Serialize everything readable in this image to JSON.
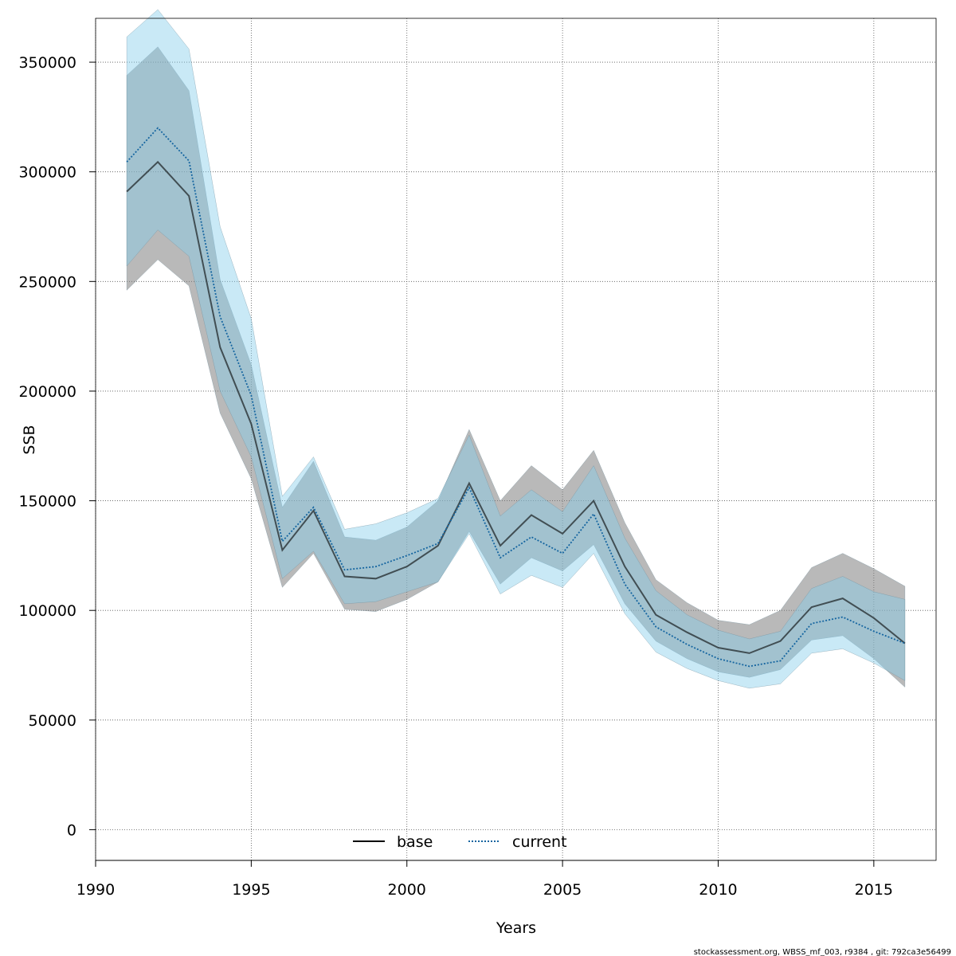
{
  "chart_data": {
    "type": "line",
    "xlabel": "Years",
    "ylabel": "SSB",
    "xlim": [
      1990,
      2017
    ],
    "ylim": [
      -14000,
      370000
    ],
    "x_ticks": [
      1990,
      1995,
      2000,
      2005,
      2010,
      2015
    ],
    "y_ticks": [
      0,
      50000,
      100000,
      150000,
      200000,
      250000,
      300000,
      350000
    ],
    "grid": true,
    "legend_position": "bottom-center",
    "x": [
      1991,
      1992,
      1993,
      1994,
      1995,
      1996,
      1997,
      1998,
      1999,
      2000,
      2001,
      2002,
      2003,
      2004,
      2005,
      2006,
      2007,
      2008,
      2009,
      2010,
      2011,
      2012,
      2013,
      2014,
      2015,
      2016
    ],
    "series": [
      {
        "name": "base",
        "line_style": "solid",
        "line_color": "#000000",
        "band_color": "#808080",
        "values": [
          291000,
          304500,
          289000,
          220000,
          185000,
          127500,
          145500,
          115500,
          114500,
          120000,
          129500,
          158000,
          129500,
          143500,
          135000,
          150000,
          120000,
          98000,
          90000,
          83000,
          80500,
          86000,
          101500,
          105500,
          96500,
          85000
        ],
        "lower": [
          246000,
          260000,
          248000,
          190000,
          160000,
          110500,
          126000,
          100500,
          99500,
          105000,
          113000,
          136000,
          112000,
          124000,
          118000,
          130000,
          103000,
          86000,
          78000,
          72000,
          69500,
          73000,
          86500,
          88500,
          78000,
          65000
        ],
        "upper": [
          344000,
          357000,
          337000,
          251000,
          212000,
          147000,
          168000,
          133500,
          132000,
          138000,
          150000,
          182500,
          150000,
          166000,
          155000,
          173000,
          140000,
          114000,
          103500,
          95500,
          93500,
          100000,
          119500,
          126000,
          119000,
          111000
        ]
      },
      {
        "name": "current",
        "line_style": "dotted",
        "line_color": "#1565a0",
        "band_color": "#87ceeb",
        "values": [
          304500,
          320000,
          305000,
          234000,
          198000,
          131500,
          147000,
          118500,
          120000,
          125000,
          130500,
          156000,
          124000,
          133500,
          126000,
          144000,
          112000,
          92500,
          84500,
          78000,
          74500,
          77000,
          94000,
          97000,
          90500,
          85000
        ],
        "lower": [
          257000,
          273500,
          261500,
          200000,
          170000,
          114500,
          127000,
          103000,
          104000,
          108500,
          113000,
          135000,
          107500,
          116000,
          110500,
          126000,
          98500,
          81000,
          73500,
          68000,
          64500,
          66500,
          80500,
          82500,
          76000,
          68000
        ],
        "upper": [
          361500,
          374000,
          356000,
          275000,
          233000,
          152000,
          170000,
          137000,
          139500,
          144500,
          151000,
          180000,
          143000,
          155000,
          145000,
          166000,
          133000,
          109000,
          98000,
          91000,
          87000,
          90500,
          110000,
          115500,
          108500,
          105000
        ]
      }
    ]
  },
  "footer": "stockassessment.org, WBSS_mf_003, r9384 , git: 792ca3e56499"
}
